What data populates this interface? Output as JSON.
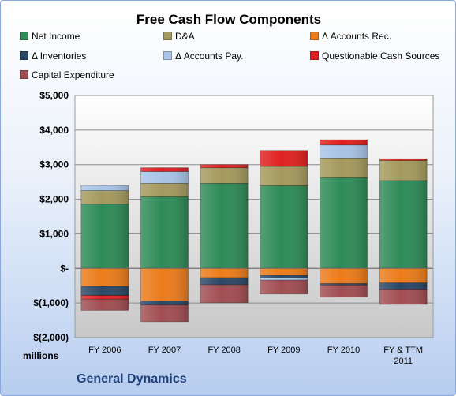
{
  "chart_data": {
    "type": "bar",
    "stacked": true,
    "title": "Free Cash Flow Components",
    "units_label": "millions",
    "company": "General Dynamics",
    "categories": [
      "FY 2006",
      "FY 2007",
      "FY 2008",
      "FY 2009",
      "FY 2010",
      "FY & TTM 2011"
    ],
    "ylim": [
      -2000,
      5000
    ],
    "yticks": [
      5000,
      4000,
      3000,
      2000,
      1000,
      0,
      -1000,
      -2000
    ],
    "ytick_labels": [
      "$5,000",
      "$4,000",
      "$3,000",
      "$2,000",
      "$1,000",
      "$-",
      "$(1,000)",
      "$(2,000)"
    ],
    "grid": true,
    "legend_position": "top",
    "series": [
      {
        "name": "Net Income",
        "color": "#2e8b57",
        "values": [
          1860,
          2070,
          2460,
          2390,
          2620,
          2540
        ]
      },
      {
        "name": "D&A",
        "color": "#a49a5e",
        "values": [
          390,
          390,
          450,
          560,
          570,
          580
        ]
      },
      {
        "name": "Δ Accounts Rec.",
        "color": "#ec7b1b",
        "values": [
          -520,
          -940,
          -270,
          -200,
          -440,
          -420
        ]
      },
      {
        "name": "Δ Inventories",
        "color": "#2b4766",
        "values": [
          -260,
          -120,
          -200,
          -80,
          -40,
          -180
        ]
      },
      {
        "name": "Δ Accounts Pay.",
        "color": "#a9c4e8",
        "values": [
          150,
          340,
          0,
          -60,
          380,
          0
        ]
      },
      {
        "name": "Questionable Cash Sources",
        "color": "#e02020",
        "values": [
          -110,
          110,
          90,
          460,
          150,
          50
        ]
      },
      {
        "name": "Capital Expenditure",
        "color": "#a14e52",
        "values": [
          -320,
          -480,
          -520,
          -400,
          -350,
          -440
        ]
      }
    ]
  }
}
